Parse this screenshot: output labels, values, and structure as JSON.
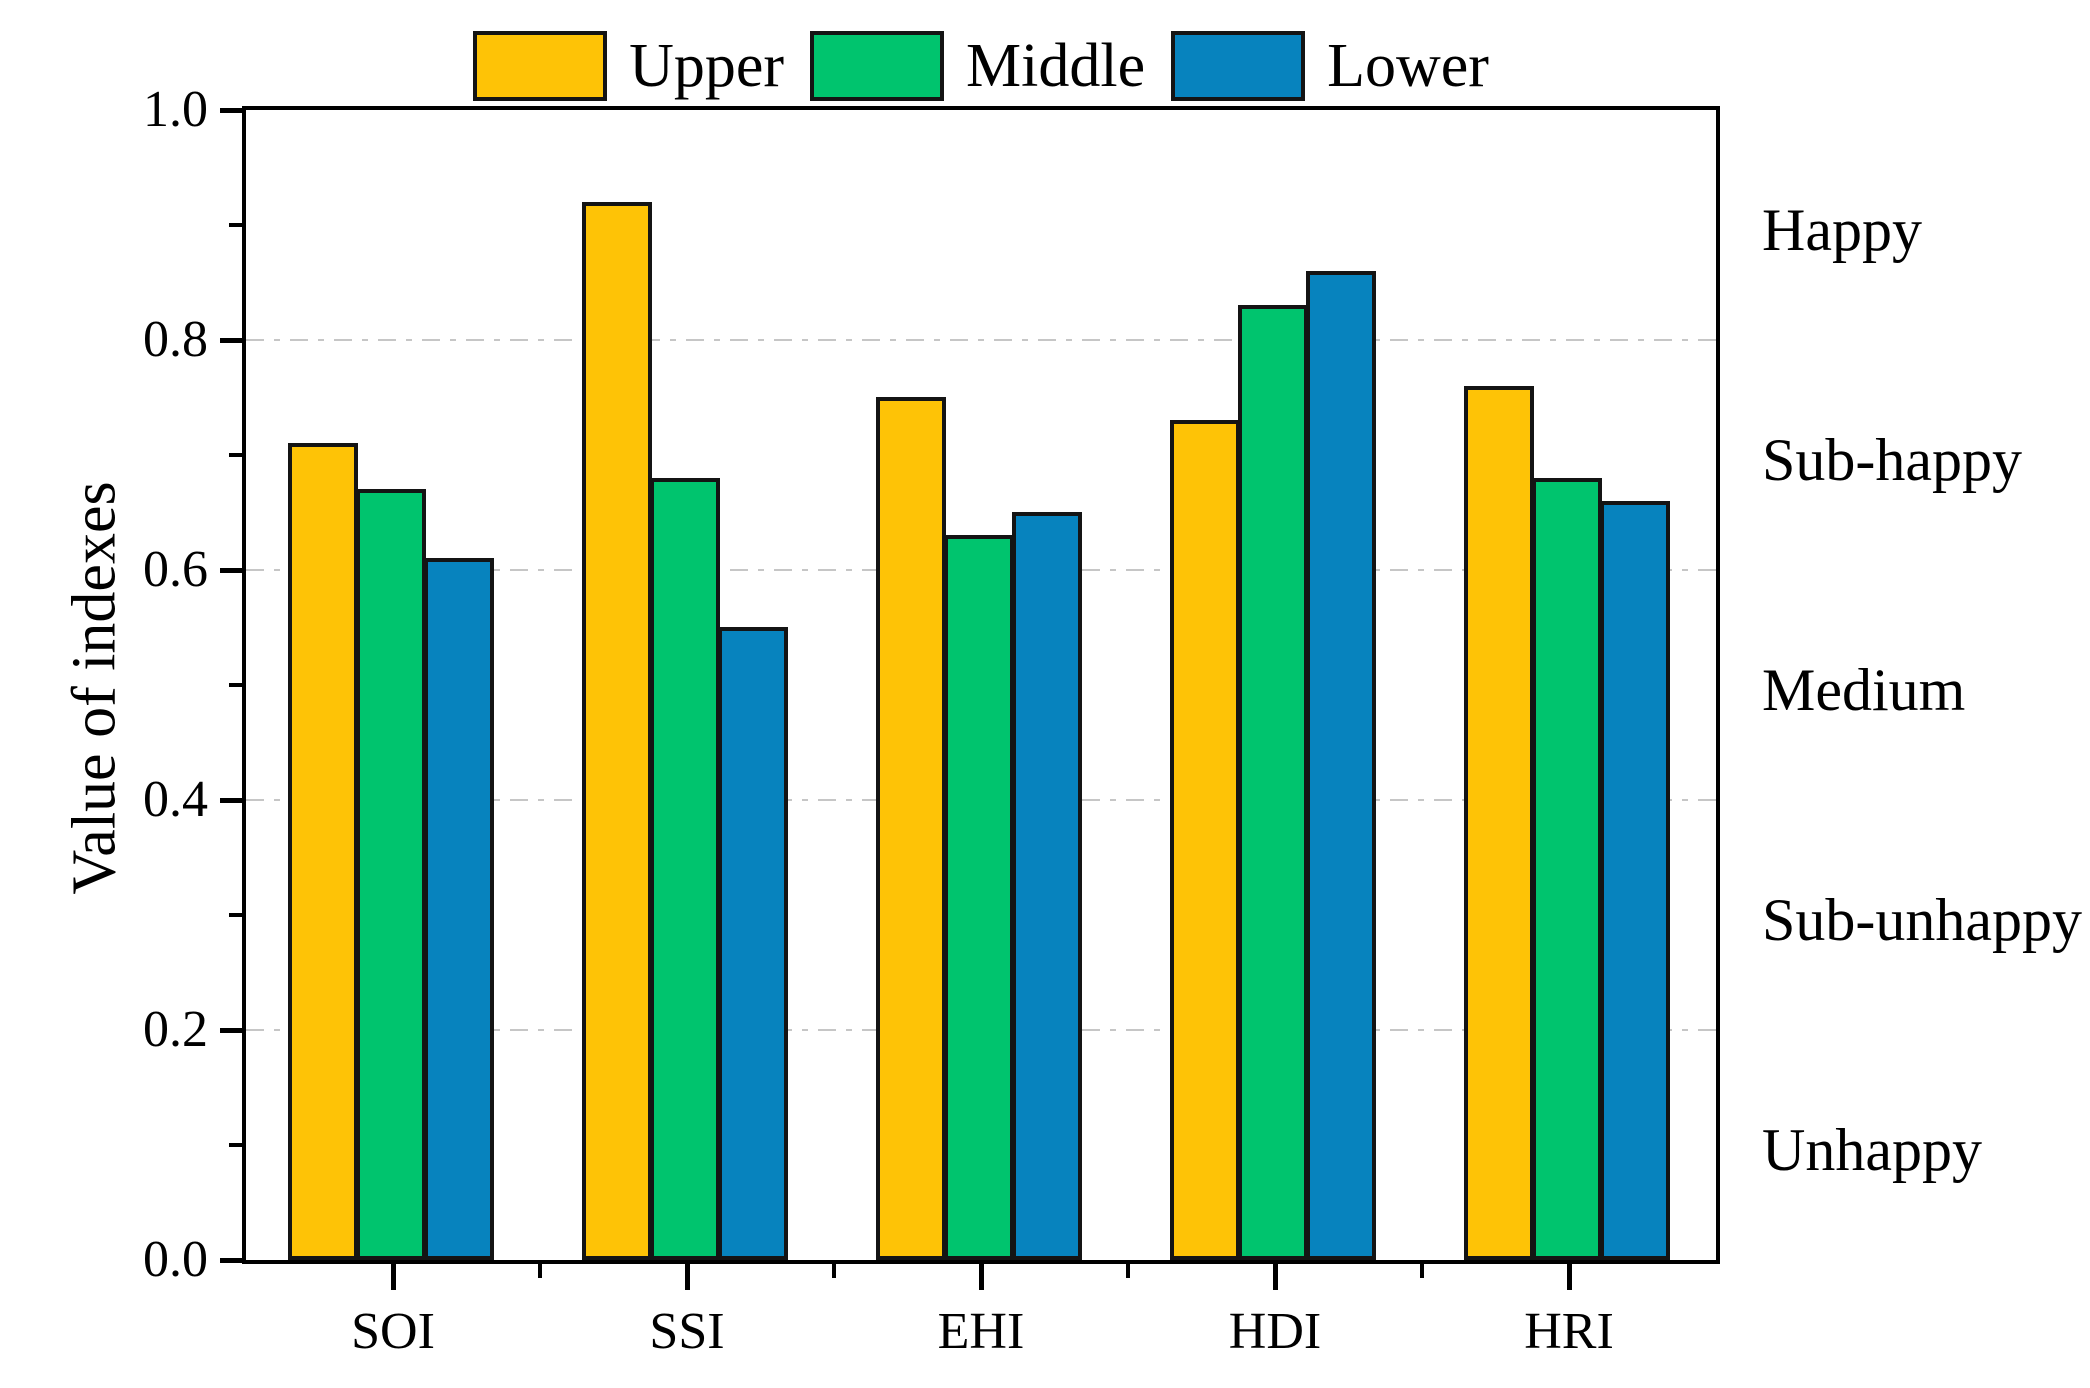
{
  "chart_data": {
    "type": "bar",
    "title": "",
    "categories": [
      "SOI",
      "SSI",
      "EHI",
      "HDI",
      "HRI"
    ],
    "series": [
      {
        "name": "Upper",
        "color": "#FEC306",
        "values": [
          0.71,
          0.92,
          0.75,
          0.73,
          0.76
        ]
      },
      {
        "name": "Middle",
        "color": "#00C46E",
        "values": [
          0.67,
          0.68,
          0.63,
          0.83,
          0.68
        ]
      },
      {
        "name": "Lower",
        "color": "#0783BE",
        "values": [
          0.61,
          0.55,
          0.65,
          0.86,
          0.66
        ]
      }
    ],
    "xlabel": "",
    "ylabel": "Value of indexes",
    "ylim": [
      0.0,
      1.0
    ],
    "yticks": [
      {
        "value": 0.0,
        "label": "0.0"
      },
      {
        "value": 0.2,
        "label": "0.2"
      },
      {
        "value": 0.4,
        "label": "0.4"
      },
      {
        "value": 0.6,
        "label": "0.6"
      },
      {
        "value": 0.8,
        "label": "0.8"
      },
      {
        "value": 1.0,
        "label": "1.0"
      }
    ],
    "minor_yticks": [
      0.1,
      0.3,
      0.5,
      0.7,
      0.9
    ],
    "gridlines": [
      0.2,
      0.4,
      0.6,
      0.8
    ],
    "grid_style": "dashed",
    "legend_position": "top-center",
    "legend_labels": [
      "Upper",
      "Middle",
      "Lower"
    ],
    "bar_edge_color": "#141414",
    "right_band_labels": [
      {
        "label": "Happy",
        "center_value": 0.9
      },
      {
        "label": "Sub-happy",
        "center_value": 0.7
      },
      {
        "label": "Medium",
        "center_value": 0.5
      },
      {
        "label": "Sub-unhappy",
        "center_value": 0.3
      },
      {
        "label": "Unhappy",
        "center_value": 0.1
      }
    ]
  }
}
